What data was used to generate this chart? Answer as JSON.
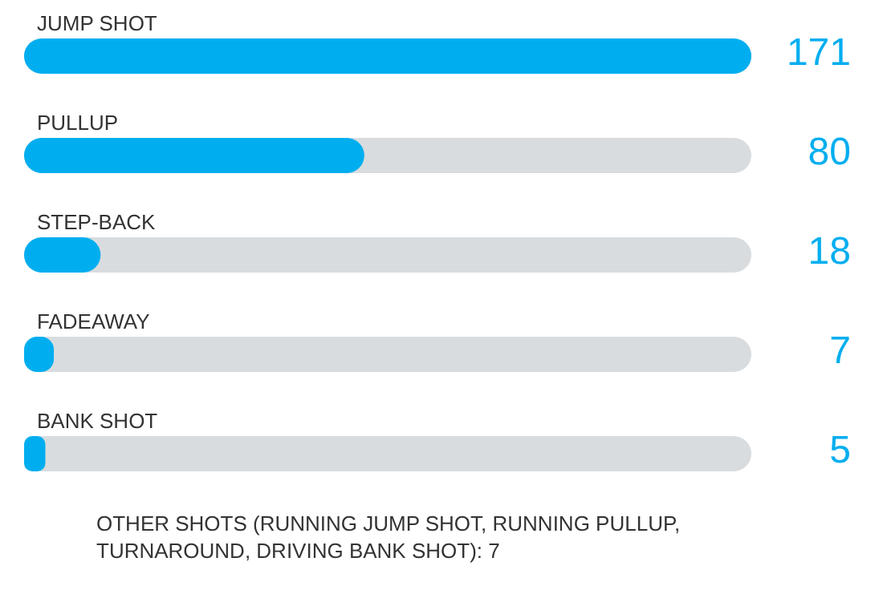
{
  "chart_data": {
    "type": "bar",
    "orientation": "horizontal",
    "categories": [
      "JUMP SHOT",
      "PULLUP",
      "STEP-BACK",
      "FADEAWAY",
      "BANK SHOT"
    ],
    "values": [
      171,
      80,
      18,
      7,
      5
    ],
    "color": "#00aeef",
    "data_labels": true,
    "tick_labels": "y",
    "annotations": [
      "OTHER SHOTS (RUNNING JUMP SHOT, RUNNING PULLUP, TURNAROUND, DRIVING BANK SHOT): 7"
    ]
  }
}
